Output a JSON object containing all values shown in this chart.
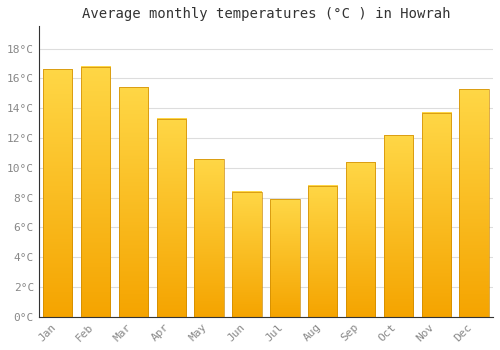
{
  "title": "Average monthly temperatures (°C ) in Howrah",
  "months": [
    "Jan",
    "Feb",
    "Mar",
    "Apr",
    "May",
    "Jun",
    "Jul",
    "Aug",
    "Sep",
    "Oct",
    "Nov",
    "Dec"
  ],
  "values": [
    16.6,
    16.8,
    15.4,
    13.3,
    10.6,
    8.4,
    7.9,
    8.8,
    10.4,
    12.2,
    13.7,
    15.3
  ],
  "bar_color": "#FFA500",
  "bar_color_top": "#FFD040",
  "ytick_labels": [
    "0°C",
    "2°C",
    "4°C",
    "6°C",
    "8°C",
    "10°C",
    "12°C",
    "14°C",
    "16°C",
    "18°C"
  ],
  "ytick_values": [
    0,
    2,
    4,
    6,
    8,
    10,
    12,
    14,
    16,
    18
  ],
  "ylim": [
    0,
    19.5
  ],
  "background_color": "#FFFFFF",
  "grid_color": "#DDDDDD",
  "title_fontsize": 10,
  "tick_fontsize": 8,
  "tick_color": "#888888",
  "title_color": "#333333",
  "font_family": "monospace",
  "bar_width": 0.78
}
